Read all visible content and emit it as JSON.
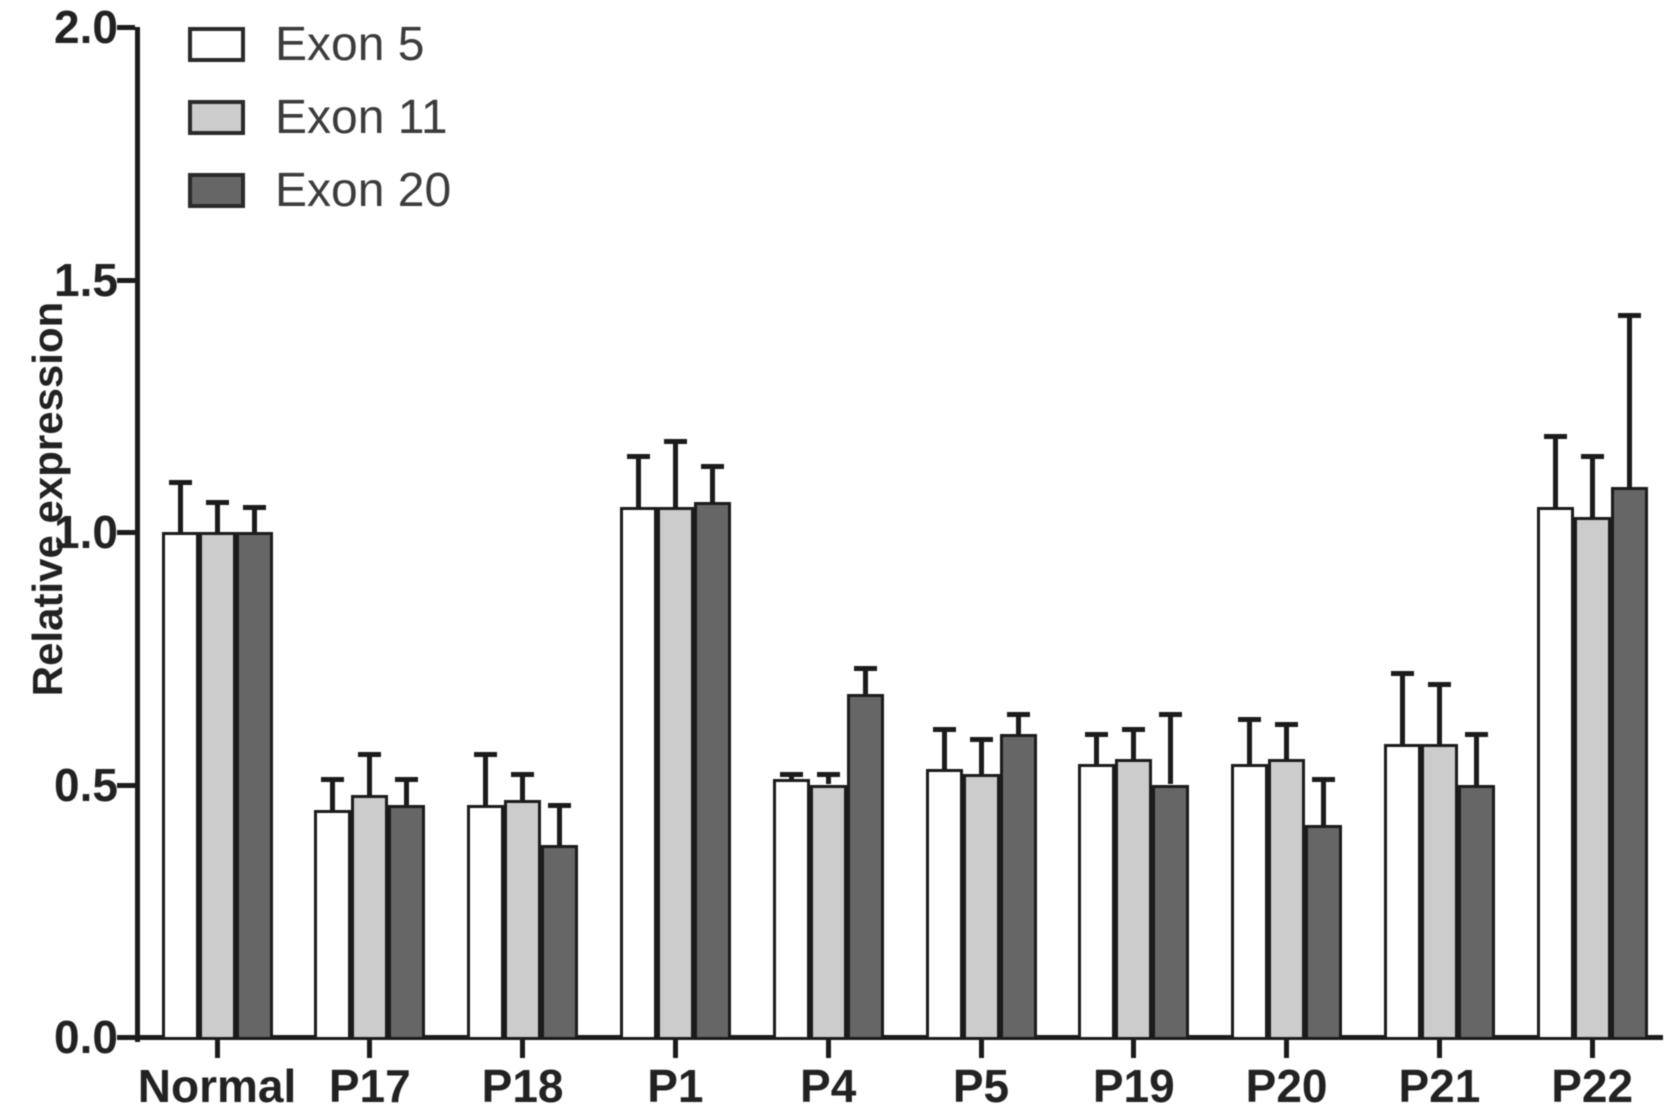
{
  "figure": {
    "background": "#ffffff",
    "text_color": "#222222",
    "axis_color": "#1b1b1b"
  },
  "chart_data": {
    "type": "bar",
    "title": "",
    "xlabel": "",
    "ylabel": "Relative expression",
    "ylim": [
      0.0,
      2.0
    ],
    "yticks": [
      0.0,
      0.5,
      1.0,
      1.5,
      2.0
    ],
    "ytick_labels": [
      "0.0",
      "0.5",
      "1.0",
      "1.5",
      "2.0"
    ],
    "grid": false,
    "legend_position": "top-left-inside",
    "error_bars": "upper-only",
    "bar_outline_color": "#1b1b1b",
    "categories": [
      "Normal",
      "P17",
      "P18",
      "P1",
      "P4",
      "P5",
      "P19",
      "P20",
      "P21",
      "P22"
    ],
    "series": [
      {
        "name": "Exon 5",
        "fill": "#ffffff",
        "values": [
          1.0,
          0.45,
          0.46,
          1.05,
          0.51,
          0.53,
          0.54,
          0.54,
          0.58,
          1.05
        ],
        "errors": [
          0.1,
          0.06,
          0.1,
          0.1,
          0.01,
          0.08,
          0.06,
          0.09,
          0.14,
          0.14
        ]
      },
      {
        "name": "Exon 11",
        "fill": "#cccccc",
        "values": [
          1.0,
          0.48,
          0.47,
          1.05,
          0.5,
          0.52,
          0.55,
          0.55,
          0.58,
          1.03
        ],
        "errors": [
          0.06,
          0.08,
          0.05,
          0.13,
          0.02,
          0.07,
          0.06,
          0.07,
          0.12,
          0.12
        ]
      },
      {
        "name": "Exon 20",
        "fill": "#666666",
        "values": [
          1.0,
          0.46,
          0.38,
          1.06,
          0.68,
          0.6,
          0.5,
          0.42,
          0.5,
          1.09
        ],
        "errors": [
          0.05,
          0.05,
          0.08,
          0.07,
          0.05,
          0.04,
          0.14,
          0.09,
          0.1,
          0.34
        ]
      }
    ]
  }
}
